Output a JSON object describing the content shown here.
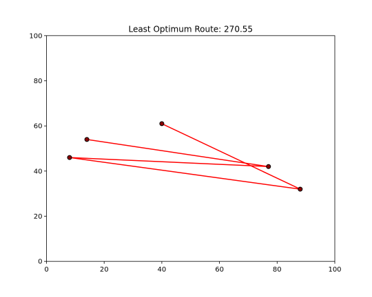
{
  "chart_data": {
    "type": "line",
    "title": "Least Optimum Route: 270.55",
    "xlabel": "",
    "ylabel": "",
    "xlim": [
      0,
      100
    ],
    "ylim": [
      0,
      100
    ],
    "x_ticks": [
      0,
      20,
      40,
      60,
      80,
      100
    ],
    "y_ticks": [
      0,
      20,
      40,
      60,
      80,
      100
    ],
    "grid": false,
    "route": {
      "x": [
        40,
        88,
        8,
        77,
        14
      ],
      "y": [
        61,
        32,
        46,
        42,
        54
      ]
    },
    "points": {
      "x": [
        40,
        88,
        8,
        77,
        14
      ],
      "y": [
        61,
        32,
        46,
        42,
        54
      ]
    },
    "colors": {
      "route_line": "#ff0000",
      "point_face": "#8b0000",
      "point_edge": "#000000"
    }
  }
}
